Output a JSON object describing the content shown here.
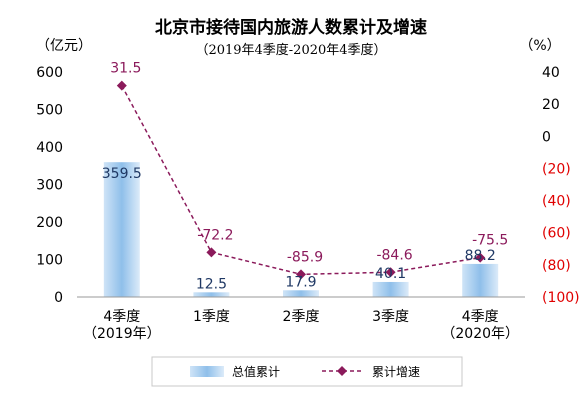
{
  "chart_data": {
    "type": "bar",
    "title": "北京市接待国内旅游人数累计及增速",
    "subtitle": "（2019年4季度-2020年4季度）",
    "categories": [
      [
        "4季度",
        "（2019年）"
      ],
      [
        "1季度"
      ],
      [
        "2季度"
      ],
      [
        "3季度"
      ],
      [
        "4季度",
        "（2020年）"
      ]
    ],
    "y_left": {
      "unit": "（亿元）",
      "range": [
        0,
        600
      ],
      "ticks": [
        "0",
        "100",
        "200",
        "300",
        "400",
        "500",
        "600"
      ]
    },
    "y_right": {
      "unit": "（%）",
      "range": [
        -100,
        40
      ],
      "ticks": [
        {
          "value": 40,
          "label": "40",
          "color": "#000000"
        },
        {
          "value": 20,
          "label": "20",
          "color": "#000000"
        },
        {
          "value": 0,
          "label": "0",
          "color": "#000000"
        },
        {
          "value": -20,
          "label": "(20)",
          "color": "#e00000"
        },
        {
          "value": -40,
          "label": "(40)",
          "color": "#e00000"
        },
        {
          "value": -60,
          "label": "(60)",
          "color": "#e00000"
        },
        {
          "value": -80,
          "label": "(80)",
          "color": "#e00000"
        },
        {
          "value": -100,
          "label": "(100)",
          "color": "#e00000"
        }
      ]
    },
    "series": [
      {
        "name": "总值累计",
        "type": "bar",
        "axis": "left",
        "values": [
          359.5,
          12.5,
          17.9,
          40.1,
          88.2
        ],
        "labels": [
          "359.5",
          "12.5",
          "17.9",
          "40.1",
          "88.2"
        ],
        "label_color": "#1f3864",
        "color": "#9dc3e6"
      },
      {
        "name": "累计增速",
        "type": "line",
        "axis": "right",
        "values": [
          31.5,
          -72.2,
          -85.9,
          -84.6,
          -75.5
        ],
        "labels": [
          "31.5",
          "-72.2",
          "-85.9",
          "-84.6",
          "-75.5"
        ],
        "label_color": "#8b1a5b",
        "color": "#8b1a5b",
        "line_style": "dashed",
        "marker": "diamond"
      }
    ],
    "legend": {
      "position": "bottom"
    },
    "grid": false
  }
}
